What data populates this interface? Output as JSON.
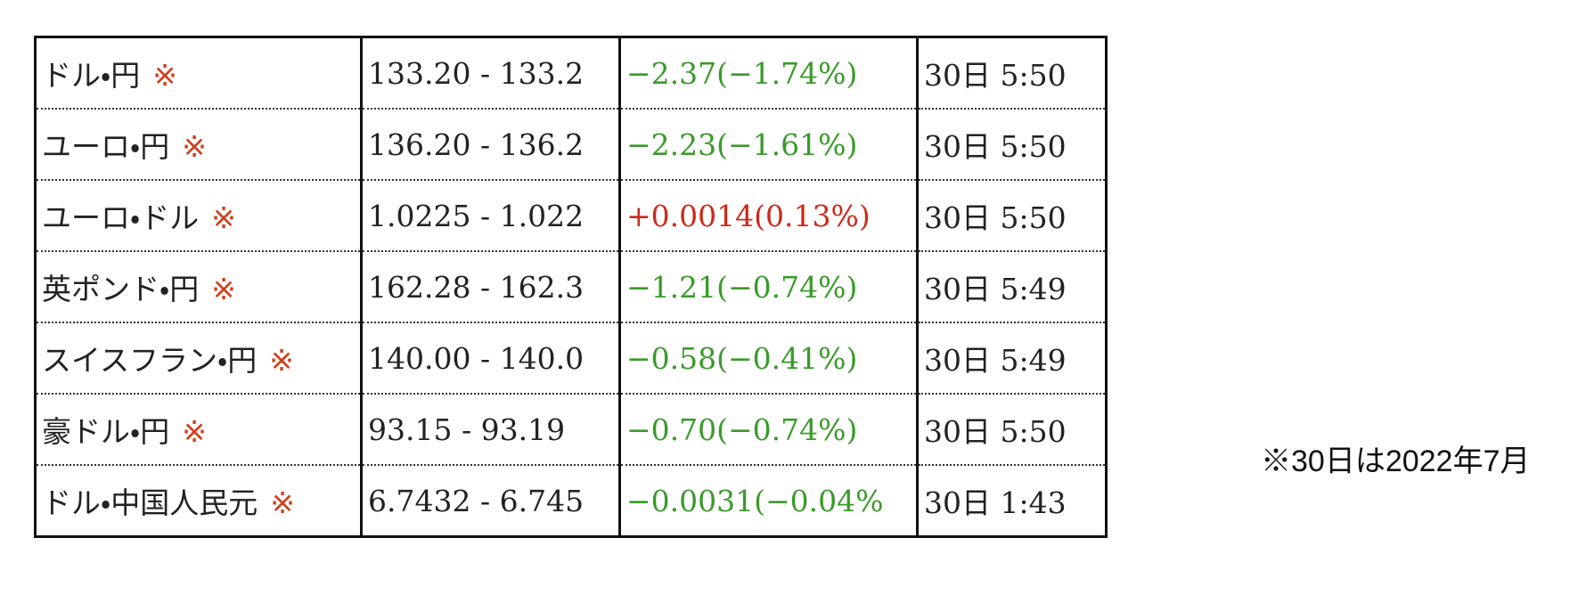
{
  "table": {
    "rows": [
      {
        "pair": "ドル・円",
        "mark": "※",
        "rate": "133.20 - 133.2",
        "change": "−2.37(−1.74%)",
        "change_color": "#3a9a2a",
        "time": "30日 5:50"
      },
      {
        "pair": "ユーロ・円",
        "mark": "※",
        "rate": "136.20 - 136.2",
        "change": "−2.23(−1.61%)",
        "change_color": "#3a9a2a",
        "time": "30日 5:50"
      },
      {
        "pair": "ユーロ・ドル",
        "mark": "※",
        "rate": "1.0225 - 1.022",
        "change": "+0.0014(0.13%)",
        "change_color": "#cc2a1a",
        "time": "30日 5:50"
      },
      {
        "pair": "英ポンド・円",
        "mark": "※",
        "rate": "162.28 - 162.3",
        "change": "−1.21(−0.74%)",
        "change_color": "#3a9a2a",
        "time": "30日 5:49"
      },
      {
        "pair": "スイスフラン・円",
        "mark": "※",
        "rate": "140.00 - 140.0",
        "change": "−0.58(−0.41%)",
        "change_color": "#3a9a2a",
        "time": "30日 5:49"
      },
      {
        "pair": "豪ドル・円",
        "mark": "※",
        "rate": "93.15 - 93.19",
        "change": "−0.70(−0.74%)",
        "change_color": "#3a9a2a",
        "time": "30日 5:50"
      },
      {
        "pair": "ドル・中国人民元",
        "mark": "※",
        "rate": "6.7432 - 6.745",
        "change": "−0.0031(−0.04%",
        "change_color": "#3a9a2a",
        "time": "30日 1:43"
      }
    ]
  },
  "note": "※30日は2022年7月"
}
